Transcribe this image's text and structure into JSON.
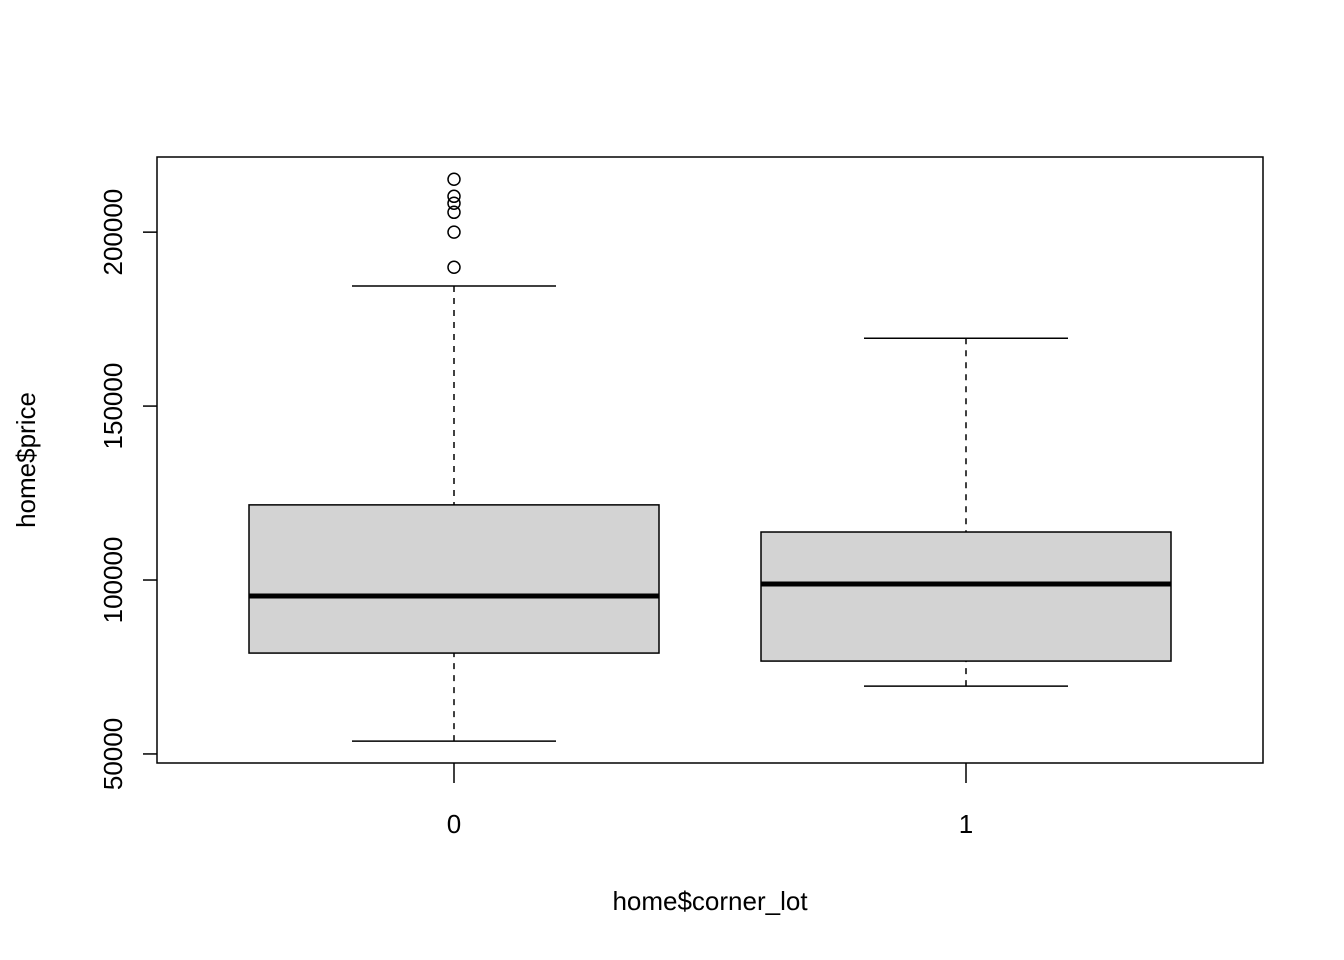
{
  "chart_data": {
    "type": "box",
    "x_label": "home$corner_lot",
    "y_label": "home$price",
    "categories": [
      "0",
      "1"
    ],
    "boxes": [
      {
        "min": 53700,
        "q1": 79000,
        "median": 95400,
        "q3": 121600,
        "max": 184500,
        "outliers": [
          215200,
          210300,
          208300,
          205700,
          200000,
          189900
        ]
      },
      {
        "min": 69500,
        "q1": 76700,
        "median": 98850,
        "q3": 113800,
        "max": 169500,
        "outliers": []
      }
    ],
    "fill": "#d3d3d3",
    "ylim": [
      47400,
      221600
    ],
    "yticks": [
      50000,
      100000,
      150000,
      200000
    ]
  }
}
